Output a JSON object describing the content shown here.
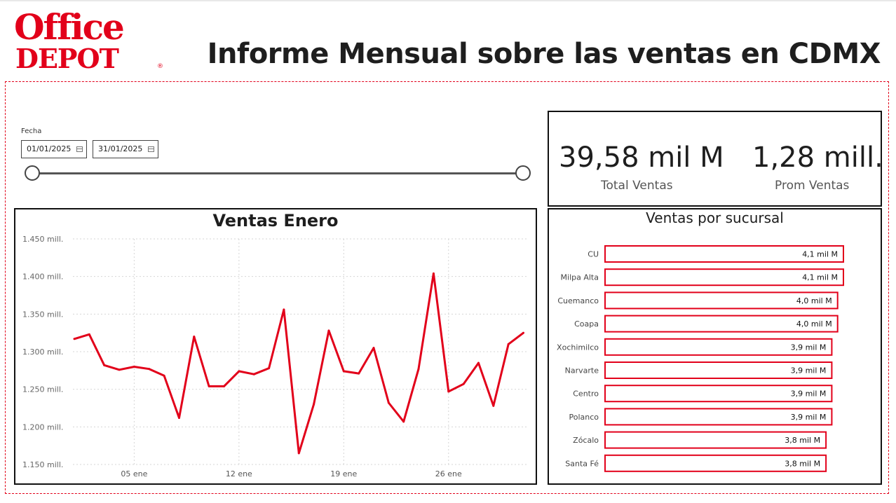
{
  "brand": {
    "logo_line1": "Office",
    "logo_line2": "DEPOT",
    "logo_mark": "®",
    "color": "#e2001a"
  },
  "header": {
    "title": "Informe Mensual sobre las ventas en CDMX"
  },
  "filters": {
    "label": "Fecha",
    "start_date": "01/01/2025",
    "end_date": "31/01/2025",
    "icon": "calendar-icon",
    "range_fraction": [
      0,
      1
    ]
  },
  "kpis": [
    {
      "value": "39,58 mil M",
      "label": "Total Ventas"
    },
    {
      "value": "1,28 mill.",
      "label": "Prom Ventas"
    }
  ],
  "charts": {
    "line_title": "Ventas Enero",
    "bar_title": "Ventas por sucursal"
  },
  "chart_data": [
    {
      "type": "line",
      "title": "Ventas Enero",
      "x": [
        "2025-01-01",
        "2025-01-02",
        "2025-01-03",
        "2025-01-04",
        "2025-01-05",
        "2025-01-06",
        "2025-01-07",
        "2025-01-08",
        "2025-01-09",
        "2025-01-10",
        "2025-01-11",
        "2025-01-12",
        "2025-01-13",
        "2025-01-14",
        "2025-01-15",
        "2025-01-16",
        "2025-01-17",
        "2025-01-18",
        "2025-01-19",
        "2025-01-20",
        "2025-01-21",
        "2025-01-22",
        "2025-01-23",
        "2025-01-24",
        "2025-01-25",
        "2025-01-26",
        "2025-01-27",
        "2025-01-28",
        "2025-01-29",
        "2025-01-30",
        "2025-01-31"
      ],
      "y": [
        1317000,
        1323000,
        1282000,
        1276000,
        1280000,
        1277000,
        1268000,
        1212000,
        1320000,
        1254000,
        1254000,
        1274000,
        1270000,
        1278000,
        1356000,
        1165000,
        1230000,
        1328000,
        1274000,
        1271000,
        1305000,
        1232000,
        1207000,
        1277000,
        1404000,
        1247000,
        1257000,
        1285000,
        1228000,
        1310000,
        1325000
      ],
      "ylim": [
        1150000,
        1450000
      ],
      "yticks": [
        1150000,
        1200000,
        1250000,
        1300000,
        1350000,
        1400000,
        1450000
      ],
      "ytick_labels": [
        "1.150 mill.",
        "1.200 mill.",
        "1.250 mill.",
        "1.300 mill.",
        "1.350 mill.",
        "1.400 mill.",
        "1.450 mill."
      ],
      "xticks": [
        "2025-01-05",
        "2025-01-12",
        "2025-01-19",
        "2025-01-26"
      ],
      "xtick_labels": [
        "05 ene",
        "12 ene",
        "19 ene",
        "26 ene"
      ],
      "grid": true,
      "color": "#e2001a"
    },
    {
      "type": "bar",
      "orientation": "horizontal",
      "title": "Ventas por sucursal",
      "categories": [
        "CU",
        "Milpa Alta",
        "Cuemanco",
        "Coapa",
        "Xochimilco",
        "Narvarte",
        "Centro",
        "Polanco",
        "Zócalo",
        "Santa Fé"
      ],
      "values": [
        4.1,
        4.1,
        4.0,
        4.0,
        3.9,
        3.9,
        3.9,
        3.9,
        3.8,
        3.8
      ],
      "units": "mil M",
      "value_labels": [
        "4,1 mil M",
        "4,1 mil M",
        "4,0 mil M",
        "4,0 mil M",
        "3,9 mil M",
        "3,9 mil M",
        "3,9 mil M",
        "3,9 mil M",
        "3,8 mil M",
        "3,8 mil M"
      ],
      "bar_fill": "#ffffff",
      "bar_border": "#e2001a"
    }
  ]
}
